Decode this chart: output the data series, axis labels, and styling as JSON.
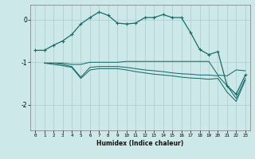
{
  "xlabel": "Humidex (Indice chaleur)",
  "bg_color": "#cce8e8",
  "grid_color": "#aacccc",
  "line_color": "#1a6b6b",
  "xlim": [
    -0.5,
    23.5
  ],
  "ylim": [
    -2.6,
    0.35
  ],
  "yticks": [
    0,
    -1,
    -2
  ],
  "xticks": [
    0,
    1,
    2,
    3,
    4,
    5,
    6,
    7,
    8,
    9,
    10,
    11,
    12,
    13,
    14,
    15,
    16,
    17,
    18,
    19,
    20,
    21,
    22,
    23
  ],
  "series1_x": [
    0,
    1,
    2,
    3,
    4,
    5,
    6,
    7,
    8,
    9,
    10,
    11,
    12,
    13,
    14,
    15,
    16,
    17,
    18,
    19,
    20,
    21,
    22,
    23
  ],
  "series1_y": [
    -0.72,
    -0.72,
    -0.6,
    -0.5,
    -0.35,
    -0.1,
    0.05,
    0.18,
    0.1,
    -0.08,
    -0.1,
    -0.08,
    0.05,
    0.05,
    0.12,
    0.05,
    0.05,
    -0.3,
    -0.7,
    -0.82,
    -0.75,
    -1.55,
    -1.75,
    -1.3
  ],
  "series2_x": [
    1,
    2,
    3,
    4,
    5,
    6,
    7,
    8,
    9,
    10,
    11,
    12,
    13,
    14,
    15,
    16,
    17,
    18,
    19,
    20,
    21,
    22,
    23
  ],
  "series2_y": [
    -1.02,
    -1.02,
    -1.02,
    -1.05,
    -1.05,
    -1.0,
    -1.0,
    -1.0,
    -1.0,
    -0.98,
    -0.98,
    -0.98,
    -0.98,
    -0.98,
    -0.98,
    -0.98,
    -0.98,
    -0.98,
    -0.98,
    -1.3,
    -1.32,
    -1.18,
    -1.2
  ],
  "series3_x": [
    1,
    2,
    3,
    4,
    5,
    6,
    7,
    8,
    9,
    10,
    11,
    12,
    13,
    14,
    15,
    16,
    17,
    18,
    19,
    20,
    21,
    22,
    23
  ],
  "series3_y": [
    -1.02,
    -1.02,
    -1.05,
    -1.1,
    -1.35,
    -1.12,
    -1.1,
    -1.1,
    -1.1,
    -1.12,
    -1.15,
    -1.18,
    -1.2,
    -1.22,
    -1.25,
    -1.27,
    -1.28,
    -1.3,
    -1.3,
    -1.32,
    -1.55,
    -1.85,
    -1.38
  ],
  "series4_x": [
    1,
    2,
    3,
    4,
    5,
    6,
    7,
    8,
    9,
    10,
    11,
    12,
    13,
    14,
    15,
    16,
    17,
    18,
    19,
    20,
    21,
    22,
    23
  ],
  "series4_y": [
    -1.02,
    -1.05,
    -1.08,
    -1.12,
    -1.38,
    -1.18,
    -1.15,
    -1.15,
    -1.15,
    -1.18,
    -1.22,
    -1.25,
    -1.28,
    -1.3,
    -1.32,
    -1.35,
    -1.37,
    -1.38,
    -1.4,
    -1.38,
    -1.7,
    -1.92,
    -1.42
  ]
}
